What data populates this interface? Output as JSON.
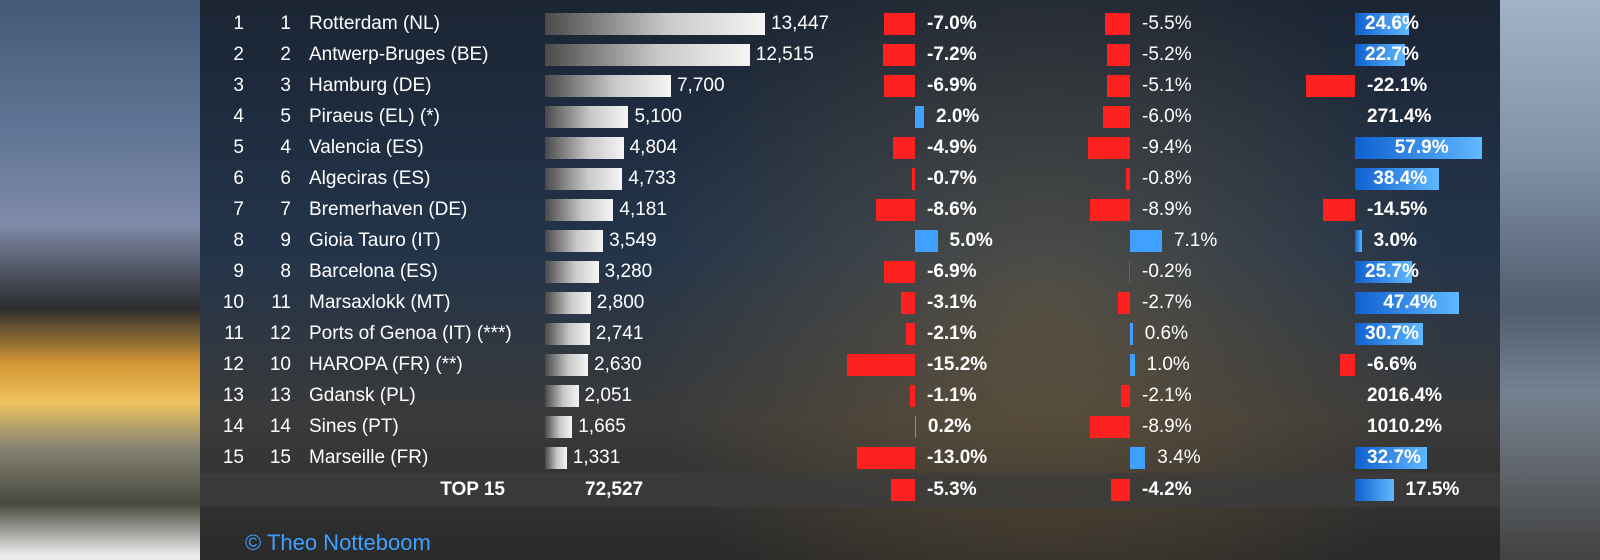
{
  "colors": {
    "neg": "#ff2020",
    "pos": "#40a0ff",
    "bg": "#223249"
  },
  "copyright": "© Theo Notteboom",
  "teu_max": 13447,
  "chg1": {
    "axis_at": 80,
    "scale": 4.5,
    "bold": true
  },
  "chg2": {
    "axis_at": 80,
    "scale": 4.5,
    "bold": false
  },
  "chg3": {
    "axis_at": 100,
    "scale": 2.2,
    "grad": true,
    "bold": true
  },
  "rows": [
    {
      "r1": "1",
      "r2": "1",
      "port": "Rotterdam (NL)",
      "teu": "13,447",
      "teu_v": 13447,
      "c1": -7.0,
      "c2": -5.5,
      "c3": 24.6
    },
    {
      "r1": "2",
      "r2": "2",
      "port": "Antwerp-Bruges (BE)",
      "teu": "12,515",
      "teu_v": 12515,
      "c1": -7.2,
      "c2": -5.2,
      "c3": 22.7
    },
    {
      "r1": "3",
      "r2": "3",
      "port": "Hamburg (DE)",
      "teu": "7,700",
      "teu_v": 7700,
      "c1": -6.9,
      "c2": -5.1,
      "c3": -22.1
    },
    {
      "r1": "4",
      "r2": "5",
      "port": "Piraeus (EL) (*)",
      "teu": "5,100",
      "teu_v": 5100,
      "c1": 2.0,
      "c2": -6.0,
      "c3": 271.4,
      "c3_nobar": true
    },
    {
      "r1": "5",
      "r2": "4",
      "port": "Valencia (ES)",
      "teu": "4,804",
      "teu_v": 4804,
      "c1": -4.9,
      "c2": -9.4,
      "c3": 57.9
    },
    {
      "r1": "6",
      "r2": "6",
      "port": "Algeciras (ES)",
      "teu": "4,733",
      "teu_v": 4733,
      "c1": -0.7,
      "c2": -0.8,
      "c3": 38.4
    },
    {
      "r1": "7",
      "r2": "7",
      "port": "Bremerhaven (DE)",
      "teu": "4,181",
      "teu_v": 4181,
      "c1": -8.6,
      "c2": -8.9,
      "c3": -14.5
    },
    {
      "r1": "8",
      "r2": "9",
      "port": "Gioia Tauro (IT)",
      "teu": "3,549",
      "teu_v": 3549,
      "c1": 5.0,
      "c2": 7.1,
      "c3": 3.0
    },
    {
      "r1": "9",
      "r2": "8",
      "port": "Barcelona (ES)",
      "teu": "3,280",
      "teu_v": 3280,
      "c1": -6.9,
      "c2": -0.2,
      "c3": 25.7
    },
    {
      "r1": "10",
      "r2": "11",
      "port": "Marsaxlokk (MT)",
      "teu": "2,800",
      "teu_v": 2800,
      "c1": -3.1,
      "c2": -2.7,
      "c3": 47.4
    },
    {
      "r1": "11",
      "r2": "12",
      "port": "Ports of Genoa (IT) (***)",
      "teu": "2,741",
      "teu_v": 2741,
      "c1": -2.1,
      "c2": 0.6,
      "c3": 30.7
    },
    {
      "r1": "12",
      "r2": "10",
      "port": "HAROPA (FR) (**)",
      "teu": "2,630",
      "teu_v": 2630,
      "c1": -15.2,
      "c2": 1.0,
      "c3": -6.6
    },
    {
      "r1": "13",
      "r2": "13",
      "port": "Gdansk (PL)",
      "teu": "2,051",
      "teu_v": 2051,
      "c1": -1.1,
      "c2": -2.1,
      "c3": 2016.4,
      "c3_nobar": true
    },
    {
      "r1": "14",
      "r2": "14",
      "port": "Sines (PT)",
      "teu": "1,665",
      "teu_v": 1665,
      "c1": 0.2,
      "c2": -8.9,
      "c3": 1010.2,
      "c3_nobar": true
    },
    {
      "r1": "15",
      "r2": "15",
      "port": "Marseille (FR)",
      "teu": "1,331",
      "teu_v": 1331,
      "c1": -13.0,
      "c2": 3.4,
      "c3": 32.7
    }
  ],
  "total": {
    "label": "TOP 15",
    "teu": "72,527",
    "c1": -5.3,
    "c2": -4.2,
    "c3": 17.5
  }
}
